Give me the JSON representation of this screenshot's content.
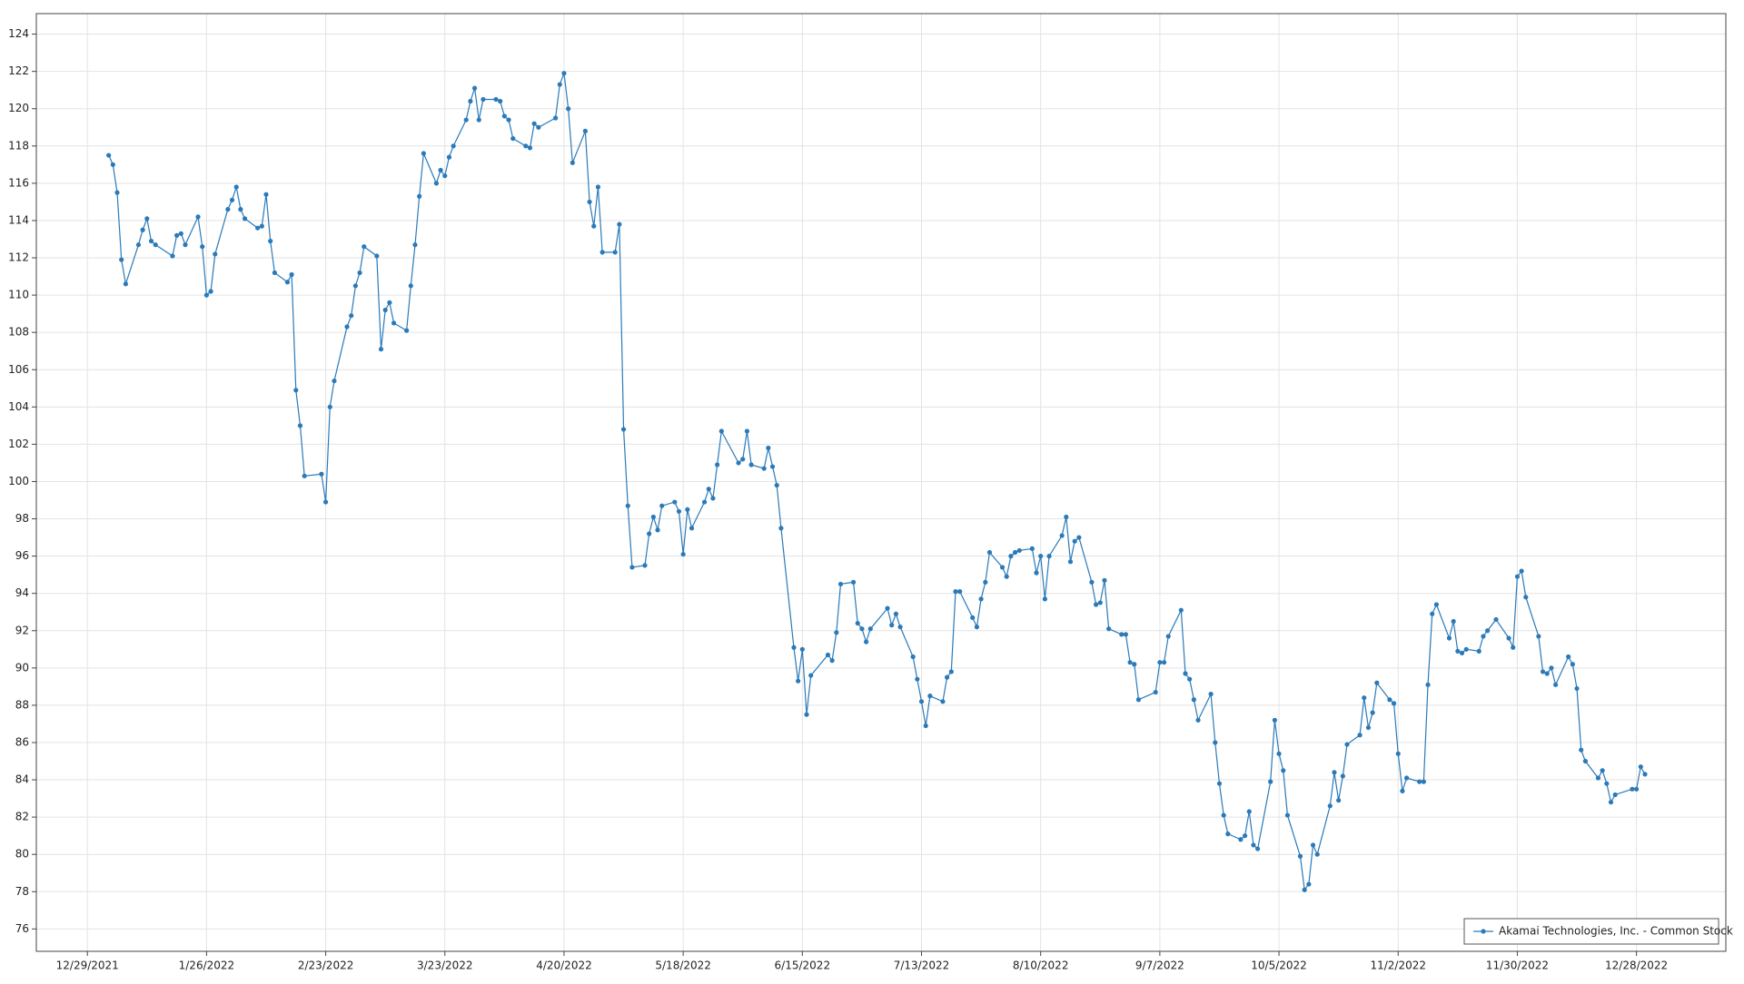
{
  "chart_data": {
    "type": "line",
    "x": [
      "1/3/2022",
      "1/4/2022",
      "1/5/2022",
      "1/6/2022",
      "1/7/2022",
      "1/10/2022",
      "1/11/2022",
      "1/12/2022",
      "1/13/2022",
      "1/14/2022",
      "1/18/2022",
      "1/19/2022",
      "1/20/2022",
      "1/21/2022",
      "1/24/2022",
      "1/25/2022",
      "1/26/2022",
      "1/27/2022",
      "1/28/2022",
      "1/31/2022",
      "2/1/2022",
      "2/2/2022",
      "2/3/2022",
      "2/4/2022",
      "2/7/2022",
      "2/8/2022",
      "2/9/2022",
      "2/10/2022",
      "2/11/2022",
      "2/14/2022",
      "2/15/2022",
      "2/16/2022",
      "2/17/2022",
      "2/18/2022",
      "2/22/2022",
      "2/23/2022",
      "2/24/2022",
      "2/25/2022",
      "2/28/2022",
      "3/1/2022",
      "3/2/2022",
      "3/3/2022",
      "3/4/2022",
      "3/7/2022",
      "3/8/2022",
      "3/9/2022",
      "3/10/2022",
      "3/11/2022",
      "3/14/2022",
      "3/15/2022",
      "3/16/2022",
      "3/17/2022",
      "3/18/2022",
      "3/21/2022",
      "3/22/2022",
      "3/23/2022",
      "3/24/2022",
      "3/25/2022",
      "3/28/2022",
      "3/29/2022",
      "3/30/2022",
      "3/31/2022",
      "4/1/2022",
      "4/4/2022",
      "4/5/2022",
      "4/6/2022",
      "4/7/2022",
      "4/8/2022",
      "4/11/2022",
      "4/12/2022",
      "4/13/2022",
      "4/14/2022",
      "4/18/2022",
      "4/19/2022",
      "4/20/2022",
      "4/21/2022",
      "4/22/2022",
      "4/25/2022",
      "4/26/2022",
      "4/27/2022",
      "4/28/2022",
      "4/29/2022",
      "5/2/2022",
      "5/3/2022",
      "5/4/2022",
      "5/5/2022",
      "5/6/2022",
      "5/9/2022",
      "5/10/2022",
      "5/11/2022",
      "5/12/2022",
      "5/13/2022",
      "5/16/2022",
      "5/17/2022",
      "5/18/2022",
      "5/19/2022",
      "5/20/2022",
      "5/23/2022",
      "5/24/2022",
      "5/25/2022",
      "5/26/2022",
      "5/27/2022",
      "5/31/2022",
      "6/1/2022",
      "6/2/2022",
      "6/3/2022",
      "6/6/2022",
      "6/7/2022",
      "6/8/2022",
      "6/9/2022",
      "6/10/2022",
      "6/13/2022",
      "6/14/2022",
      "6/15/2022",
      "6/16/2022",
      "6/17/2022",
      "6/21/2022",
      "6/22/2022",
      "6/23/2022",
      "6/24/2022",
      "6/27/2022",
      "6/28/2022",
      "6/29/2022",
      "6/30/2022",
      "7/1/2022",
      "7/5/2022",
      "7/6/2022",
      "7/7/2022",
      "7/8/2022",
      "7/11/2022",
      "7/12/2022",
      "7/13/2022",
      "7/14/2022",
      "7/15/2022",
      "7/18/2022",
      "7/19/2022",
      "7/20/2022",
      "7/21/2022",
      "7/22/2022",
      "7/25/2022",
      "7/26/2022",
      "7/27/2022",
      "7/28/2022",
      "7/29/2022",
      "8/1/2022",
      "8/2/2022",
      "8/3/2022",
      "8/4/2022",
      "8/5/2022",
      "8/8/2022",
      "8/9/2022",
      "8/10/2022",
      "8/11/2022",
      "8/12/2022",
      "8/15/2022",
      "8/16/2022",
      "8/17/2022",
      "8/18/2022",
      "8/19/2022",
      "8/22/2022",
      "8/23/2022",
      "8/24/2022",
      "8/25/2022",
      "8/26/2022",
      "8/29/2022",
      "8/30/2022",
      "8/31/2022",
      "9/1/2022",
      "9/2/2022",
      "9/6/2022",
      "9/7/2022",
      "9/8/2022",
      "9/9/2022",
      "9/12/2022",
      "9/13/2022",
      "9/14/2022",
      "9/15/2022",
      "9/16/2022",
      "9/19/2022",
      "9/20/2022",
      "9/21/2022",
      "9/22/2022",
      "9/23/2022",
      "9/26/2022",
      "9/27/2022",
      "9/28/2022",
      "9/29/2022",
      "9/30/2022",
      "10/3/2022",
      "10/4/2022",
      "10/5/2022",
      "10/6/2022",
      "10/7/2022",
      "10/10/2022",
      "10/11/2022",
      "10/12/2022",
      "10/13/2022",
      "10/14/2022",
      "10/17/2022",
      "10/18/2022",
      "10/19/2022",
      "10/20/2022",
      "10/21/2022",
      "10/24/2022",
      "10/25/2022",
      "10/26/2022",
      "10/27/2022",
      "10/28/2022",
      "10/31/2022",
      "11/1/2022",
      "11/2/2022",
      "11/3/2022",
      "11/4/2022",
      "11/7/2022",
      "11/8/2022",
      "11/9/2022",
      "11/10/2022",
      "11/11/2022",
      "11/14/2022",
      "11/15/2022",
      "11/16/2022",
      "11/17/2022",
      "11/18/2022",
      "11/21/2022",
      "11/22/2022",
      "11/23/2022",
      "11/25/2022",
      "11/28/2022",
      "11/29/2022",
      "11/30/2022",
      "12/1/2022",
      "12/2/2022",
      "12/5/2022",
      "12/6/2022",
      "12/7/2022",
      "12/8/2022",
      "12/9/2022",
      "12/12/2022",
      "12/13/2022",
      "12/14/2022",
      "12/15/2022",
      "12/16/2022",
      "12/19/2022",
      "12/20/2022",
      "12/21/2022",
      "12/22/2022",
      "12/23/2022",
      "12/27/2022",
      "12/28/2022",
      "12/29/2022",
      "12/30/2022"
    ],
    "series": [
      {
        "name": "Akamai Technologies, Inc. - Common Stock",
        "color": "#2a7ab9",
        "values": [
          117.5,
          117.0,
          115.5,
          111.9,
          110.6,
          112.7,
          113.5,
          114.1,
          112.9,
          112.7,
          112.1,
          113.2,
          113.3,
          112.7,
          114.2,
          112.6,
          110.0,
          110.2,
          112.2,
          114.6,
          115.1,
          115.8,
          114.6,
          114.1,
          113.6,
          113.7,
          115.4,
          112.9,
          111.2,
          110.7,
          111.1,
          104.9,
          103.0,
          100.3,
          100.4,
          98.9,
          104.0,
          105.4,
          108.3,
          108.9,
          110.5,
          111.2,
          112.6,
          112.1,
          107.1,
          109.2,
          109.6,
          108.5,
          108.1,
          110.5,
          112.7,
          115.3,
          117.6,
          116.0,
          116.7,
          116.4,
          117.4,
          118.0,
          119.4,
          120.4,
          121.1,
          119.4,
          120.5,
          120.5,
          120.4,
          119.6,
          119.4,
          118.4,
          118.0,
          117.9,
          119.2,
          119.0,
          119.5,
          121.3,
          121.9,
          120.0,
          117.1,
          118.8,
          115.0,
          113.7,
          115.8,
          112.3,
          112.3,
          113.8,
          102.8,
          98.7,
          95.4,
          95.5,
          97.2,
          98.1,
          97.4,
          98.7,
          98.9,
          98.4,
          96.1,
          98.5,
          97.5,
          98.9,
          99.6,
          99.1,
          100.9,
          102.7,
          101.0,
          101.2,
          102.7,
          100.9,
          100.7,
          101.8,
          100.8,
          99.8,
          97.5,
          91.1,
          89.3,
          91.0,
          87.5,
          89.6,
          90.7,
          90.4,
          91.9,
          94.5,
          94.6,
          92.4,
          92.1,
          91.4,
          92.1,
          93.2,
          92.3,
          92.9,
          92.2,
          90.6,
          89.4,
          88.2,
          86.9,
          88.5,
          88.2,
          89.5,
          89.8,
          94.1,
          94.1,
          92.7,
          92.2,
          93.7,
          94.6,
          96.2,
          95.4,
          94.9,
          96.0,
          96.2,
          96.3,
          96.4,
          95.1,
          96.0,
          93.7,
          96.0,
          97.1,
          98.1,
          95.7,
          96.8,
          97.0,
          94.6,
          93.4,
          93.5,
          94.7,
          92.1,
          91.8,
          91.8,
          90.3,
          90.2,
          88.3,
          88.7,
          90.3,
          90.3,
          91.7,
          93.1,
          89.7,
          89.4,
          88.3,
          87.2,
          88.6,
          86.0,
          83.8,
          82.1,
          81.1,
          80.8,
          81.0,
          82.3,
          80.5,
          80.3,
          83.9,
          87.2,
          85.4,
          84.5,
          82.1,
          79.9,
          78.1,
          78.4,
          80.5,
          80.0,
          82.6,
          84.4,
          82.9,
          84.2,
          85.9,
          86.4,
          88.4,
          86.8,
          87.6,
          89.2,
          88.3,
          88.1,
          85.4,
          83.4,
          84.1,
          83.9,
          83.9,
          89.1,
          92.9,
          93.4,
          91.6,
          92.5,
          90.9,
          90.8,
          91.0,
          90.9,
          91.7,
          92.0,
          92.6,
          91.6,
          91.1,
          94.9,
          95.2,
          93.8,
          91.7,
          89.8,
          89.7,
          90.0,
          89.1,
          90.6,
          90.2,
          88.9,
          85.6,
          85.0,
          84.1,
          84.5,
          83.8,
          82.8,
          83.2,
          83.5,
          83.5,
          84.7,
          84.3
        ]
      }
    ],
    "xlim": [
      "12/17/2021",
      "1/18/2023"
    ],
    "xticks": [
      "12/29/2021",
      "1/26/2022",
      "2/23/2022",
      "3/23/2022",
      "4/20/2022",
      "5/18/2022",
      "6/15/2022",
      "7/13/2022",
      "8/10/2022",
      "9/7/2022",
      "10/5/2022",
      "11/2/2022",
      "11/30/2022",
      "12/28/2022"
    ],
    "ylim": [
      74.8,
      125.1
    ],
    "yticks": [
      76,
      78,
      80,
      82,
      84,
      86,
      88,
      90,
      92,
      94,
      96,
      98,
      100,
      102,
      104,
      106,
      108,
      110,
      112,
      114,
      116,
      118,
      120,
      122,
      124
    ],
    "grid": true,
    "legend": "lower right"
  }
}
